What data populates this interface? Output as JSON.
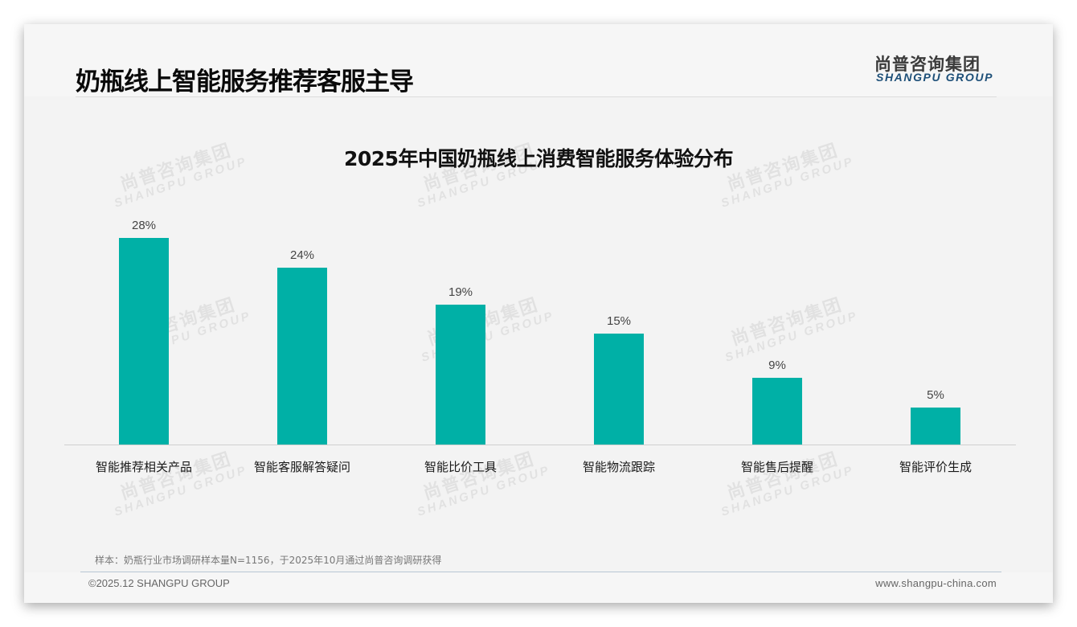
{
  "header": {
    "title": "奶瓶线上智能服务推荐客服主导",
    "logo_cn": "尚普咨询集团",
    "logo_en": "SHANGPU GROUP"
  },
  "watermark": {
    "cn": "尚普咨询集团",
    "en": "SHANGPU GROUP"
  },
  "chart_data": {
    "type": "bar",
    "title": "2025年中国奶瓶线上消费智能服务体验分布",
    "categories": [
      "智能推荐相关产品",
      "智能客服解答疑问",
      "智能比价工具",
      "智能物流跟踪",
      "智能售后提醒",
      "智能评价生成"
    ],
    "values": [
      28,
      24,
      19,
      15,
      9,
      5
    ],
    "value_labels": [
      "28%",
      "24%",
      "19%",
      "15%",
      "9%",
      "5%"
    ],
    "unit": "%",
    "xlabel": "",
    "ylabel": "",
    "ylim": [
      0,
      30
    ],
    "grid": false,
    "legend": null,
    "bar_color": "#00b0a6"
  },
  "footer": {
    "note": "样本：奶瓶行业市场调研样本量N=1156，于2025年10月通过尚普咨询调研获得",
    "copyright": "©2025.12 SHANGPU GROUP",
    "website": "www.shangpu-china.com"
  }
}
